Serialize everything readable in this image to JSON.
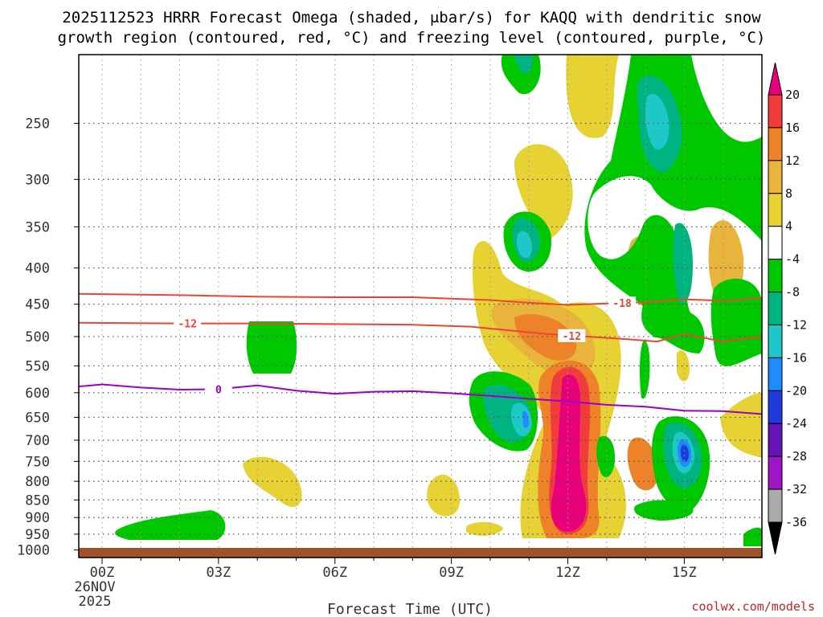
{
  "chart_data": {
    "type": "contour",
    "title_line1": "2025112523 HRRR Forecast Omega (shaded, μbar/s) for KAQQ with dendritic snow",
    "title_line2": "growth region (contoured, red, °C) and freezing level (contoured, purple, °C)",
    "xlabel": "Forecast Time (UTC)",
    "x_ticks": [
      {
        "h": 0,
        "label": "00Z"
      },
      {
        "h": 3,
        "label": "03Z"
      },
      {
        "h": 6,
        "label": "06Z"
      },
      {
        "h": 9,
        "label": "09Z"
      },
      {
        "h": 12,
        "label": "12Z"
      },
      {
        "h": 15,
        "label": "15Z"
      }
    ],
    "x_date_line1": "26NOV",
    "x_date_line2": "2025",
    "xlim": [
      -0.6,
      17.0
    ],
    "y_ticks": [
      250,
      300,
      350,
      400,
      450,
      500,
      550,
      600,
      650,
      700,
      750,
      800,
      850,
      900,
      950,
      1000
    ],
    "ylim": [
      1025,
      200
    ],
    "y_scale": "log",
    "colorbar": {
      "levels": [
        20,
        16,
        12,
        8,
        4,
        -4,
        -8,
        -12,
        -16,
        -20,
        -24,
        -28,
        -32,
        -36
      ],
      "colors": [
        "#e8007a",
        "#f03c3c",
        "#ee8228",
        "#e8b43c",
        "#e6d232",
        "#ffffff",
        "#00c800",
        "#00b482",
        "#1ec8c8",
        "#1e8cff",
        "#1e3cdc",
        "#6414b4",
        "#a014c8",
        "#aaaaaa",
        "#000000"
      ]
    },
    "isotherms": [
      {
        "label": "-18",
        "color": "#ee4433",
        "x": [
          -0.6,
          2,
          4,
          6,
          8,
          10,
          11,
          12,
          13,
          14,
          15,
          16,
          17
        ],
        "p": [
          435,
          437,
          439,
          440,
          440,
          444,
          448,
          451,
          449,
          447,
          443,
          445,
          441
        ]
      },
      {
        "label": "-12",
        "color": "#ee4433",
        "x": [
          -0.6,
          2,
          4,
          6,
          8,
          9.5,
          10.5,
          11.5,
          12.5,
          13.5,
          14.3,
          15,
          16,
          17
        ],
        "p": [
          478,
          479,
          479,
          480,
          481,
          484,
          490,
          496,
          500,
          504,
          508,
          496,
          508,
          500
        ]
      },
      {
        "label": "0",
        "color": "#9a00cc",
        "x": [
          -0.6,
          0,
          1,
          2,
          3,
          4,
          5,
          6,
          7,
          8,
          9,
          10,
          11,
          12,
          13,
          14,
          15,
          16,
          17
        ],
        "p": [
          588,
          584,
          590,
          594,
          593,
          586,
          596,
          602,
          598,
          597,
          601,
          606,
          612,
          617,
          624,
          628,
          636,
          637,
          643
        ]
      }
    ],
    "terrain_color": "#a0522d",
    "credit": "coolwx.com/models"
  }
}
